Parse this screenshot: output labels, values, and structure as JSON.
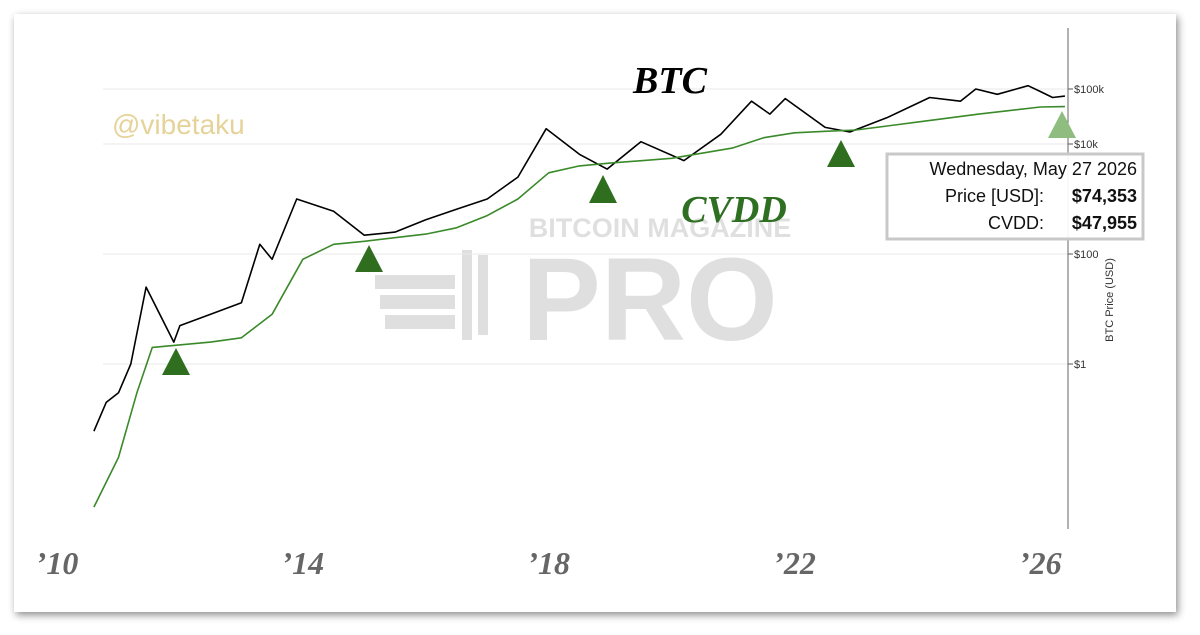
{
  "chart_data": {
    "type": "line",
    "title": "BTC",
    "handle": "@vibetaku",
    "watermark": {
      "top": "BITCOIN MAGAZINE",
      "main": "PRO"
    },
    "y_label": "BTC Price (USD)",
    "log_scale": true,
    "grid": true,
    "xlim": [
      2010,
      2026.45
    ],
    "xticks": [
      {
        "value": 2010,
        "label": "’10"
      },
      {
        "value": 2014,
        "label": "’14"
      },
      {
        "value": 2018,
        "label": "’18"
      },
      {
        "value": 2022,
        "label": "’22"
      },
      {
        "value": 2026,
        "label": "’26"
      }
    ],
    "ylim": [
      0.001,
      1000000
    ],
    "yticks": [
      {
        "value": 1,
        "label": "$1"
      },
      {
        "value": 100,
        "label": "$100"
      },
      {
        "value": 10000,
        "label": "$10k"
      },
      {
        "value": 100000,
        "label": "$100k"
      }
    ],
    "series": [
      {
        "name": "BTC",
        "color": "#000000",
        "x": [
          2010.6,
          2010.8,
          2011.0,
          2011.2,
          2011.45,
          2011.9,
          2012.0,
          2012.5,
          2013.0,
          2013.3,
          2013.5,
          2013.9,
          2014.5,
          2015.0,
          2015.5,
          2016.0,
          2016.5,
          2017.0,
          2017.5,
          2017.96,
          2018.5,
          2018.95,
          2019.5,
          2020.2,
          2020.8,
          2021.3,
          2021.6,
          2021.85,
          2022.5,
          2022.9,
          2023.5,
          2024.2,
          2024.7,
          2024.95,
          2025.3,
          2025.8,
          2026.0,
          2026.2,
          2026.4
        ],
        "values": [
          0.06,
          0.2,
          0.3,
          1,
          25,
          2.5,
          5,
          8,
          13,
          150,
          80,
          1000,
          600,
          220,
          250,
          420,
          650,
          1000,
          2500,
          19000,
          6500,
          3500,
          11000,
          5000,
          15000,
          60000,
          35000,
          67000,
          20000,
          16500,
          30000,
          70000,
          60000,
          100000,
          80000,
          115000,
          90000,
          70000,
          74353
        ]
      },
      {
        "name": "CVDD",
        "color": "#3a8a2a",
        "x": [
          2010.6,
          2011.0,
          2011.3,
          2011.55,
          2012.5,
          2013.0,
          2013.5,
          2014.0,
          2014.5,
          2015.0,
          2016.0,
          2016.5,
          2017.0,
          2017.5,
          2018.0,
          2018.5,
          2019.0,
          2020.0,
          2021.0,
          2021.5,
          2022.0,
          2022.5,
          2023.0,
          2024.0,
          2025.0,
          2026.0,
          2026.4
        ],
        "values": [
          0.0025,
          0.02,
          0.3,
          2,
          2.5,
          3,
          8,
          80,
          150,
          170,
          230,
          300,
          500,
          1000,
          3000,
          4000,
          4500,
          5500,
          8500,
          13000,
          16000,
          17000,
          18000,
          25000,
          35000,
          47000,
          47955
        ]
      }
    ],
    "tooltip": {
      "date": "Wednesday, May 27 2026",
      "rows": [
        {
          "label": "Price [USD]:",
          "value": "$74,353"
        },
        {
          "label": "CVDD:",
          "value": "$47,955"
        }
      ]
    }
  }
}
